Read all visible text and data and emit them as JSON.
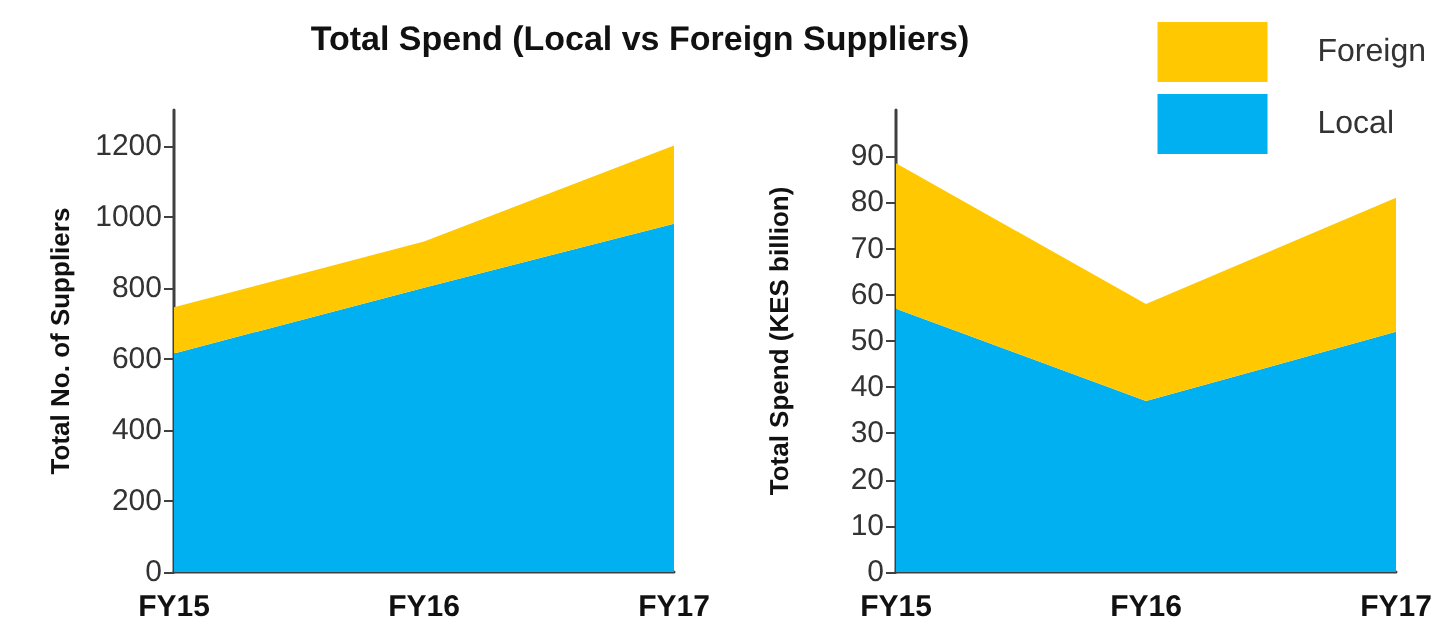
{
  "chart_data": [
    {
      "type": "area",
      "title": "Total Spend (Local vs Foreign Suppliers)",
      "ylabel": "Total No. of Suppliers",
      "categories": [
        "FY15",
        "FY16",
        "FY17"
      ],
      "stacked": true,
      "ylim": [
        0,
        1300
      ],
      "yticks": [
        0,
        200,
        400,
        600,
        800,
        1000,
        1200
      ],
      "grid": false,
      "legend": false,
      "series": [
        {
          "color": "#00b0f0",
          "values": [
            615,
            800,
            980
          ]
        },
        {
          "color": "#ffc800",
          "values": [
            130,
            130,
            220
          ]
        }
      ]
    },
    {
      "type": "area",
      "ylabel": "Total Spend (KES billion)",
      "categories": [
        "FY15",
        "FY16",
        "FY17"
      ],
      "stacked": true,
      "ylim": [
        0,
        100
      ],
      "yticks": [
        0,
        10,
        20,
        30,
        40,
        50,
        60,
        70,
        80,
        90
      ],
      "grid": false,
      "legend": "top right",
      "series": [
        {
          "name": "Local",
          "color": "#00b0f0",
          "values": [
            57,
            37,
            52
          ]
        },
        {
          "name": "Foreign",
          "color": "#ffc800",
          "values": [
            31.5,
            21,
            29
          ]
        }
      ]
    }
  ]
}
